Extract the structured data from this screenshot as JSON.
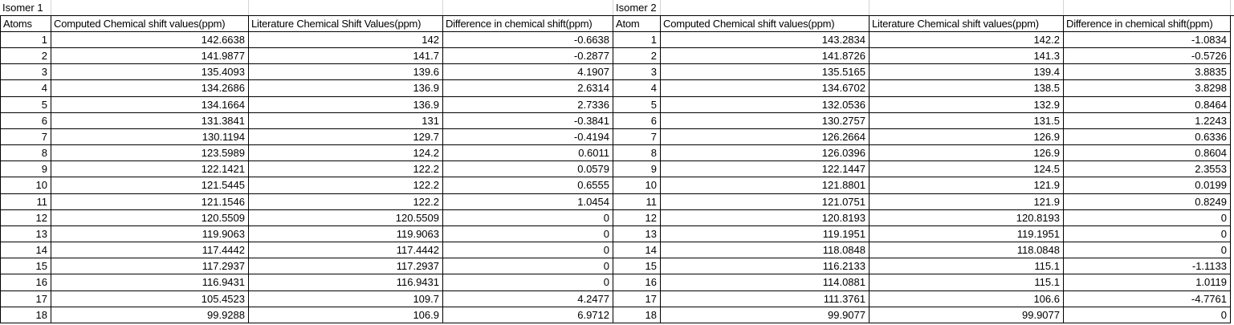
{
  "isomer1": {
    "title": "Isomer 1",
    "headers": [
      "Atoms",
      "Computed Chemical shift values(ppm)",
      "Literature Chemical Shift Values(ppm)",
      "Difference in chemical shift(ppm)"
    ],
    "rows": [
      [
        "1",
        "142.6638",
        "142",
        "-0.6638"
      ],
      [
        "2",
        "141.9877",
        "141.7",
        "-0.2877"
      ],
      [
        "3",
        "135.4093",
        "139.6",
        "4.1907"
      ],
      [
        "4",
        "134.2686",
        "136.9",
        "2.6314"
      ],
      [
        "5",
        "134.1664",
        "136.9",
        "2.7336"
      ],
      [
        "6",
        "131.3841",
        "131",
        "-0.3841"
      ],
      [
        "7",
        "130.1194",
        "129.7",
        "-0.4194"
      ],
      [
        "8",
        "123.5989",
        "124.2",
        "0.6011"
      ],
      [
        "9",
        "122.1421",
        "122.2",
        "0.0579"
      ],
      [
        "10",
        "121.5445",
        "122.2",
        "0.6555"
      ],
      [
        "11",
        "121.1546",
        "122.2",
        "1.0454"
      ],
      [
        "12",
        "120.5509",
        "120.5509",
        "0"
      ],
      [
        "13",
        "119.9063",
        "119.9063",
        "0"
      ],
      [
        "14",
        "117.4442",
        "117.4442",
        "0"
      ],
      [
        "15",
        "117.2937",
        "117.2937",
        "0"
      ],
      [
        "16",
        "116.9431",
        "116.9431",
        "0"
      ],
      [
        "17",
        "105.4523",
        "109.7",
        "4.2477"
      ],
      [
        "18",
        "99.9288",
        "106.9",
        "6.9712"
      ]
    ]
  },
  "isomer2": {
    "title": "Isomer 2",
    "headers": [
      "Atom",
      "Computed Chemical shift values(ppm)",
      "Literature Chemical shift values(ppm)",
      "Difference in chemical shift(ppm)"
    ],
    "rows": [
      [
        "1",
        "143.2834",
        "142.2",
        "-1.0834"
      ],
      [
        "2",
        "141.8726",
        "141.3",
        "-0.5726"
      ],
      [
        "3",
        "135.5165",
        "139.4",
        "3.8835"
      ],
      [
        "4",
        "134.6702",
        "138.5",
        "3.8298"
      ],
      [
        "5",
        "132.0536",
        "132.9",
        "0.8464"
      ],
      [
        "6",
        "130.2757",
        "131.5",
        "1.2243"
      ],
      [
        "7",
        "126.2664",
        "126.9",
        "0.6336"
      ],
      [
        "8",
        "126.0396",
        "126.9",
        "0.8604"
      ],
      [
        "9",
        "122.1447",
        "124.5",
        "2.3553"
      ],
      [
        "10",
        "121.8801",
        "121.9",
        "0.0199"
      ],
      [
        "11",
        "121.0751",
        "121.9",
        "0.8249"
      ],
      [
        "12",
        "120.8193",
        "120.8193",
        "0"
      ],
      [
        "13",
        "119.1951",
        "119.1951",
        "0"
      ],
      [
        "14",
        "118.0848",
        "118.0848",
        "0"
      ],
      [
        "15",
        "116.2133",
        "115.1",
        "-1.1133"
      ],
      [
        "16",
        "114.0881",
        "115.1",
        "1.0119"
      ],
      [
        "17",
        "111.3761",
        "106.6",
        "-4.7761"
      ],
      [
        "18",
        "99.9077",
        "99.9077",
        "0"
      ]
    ]
  }
}
